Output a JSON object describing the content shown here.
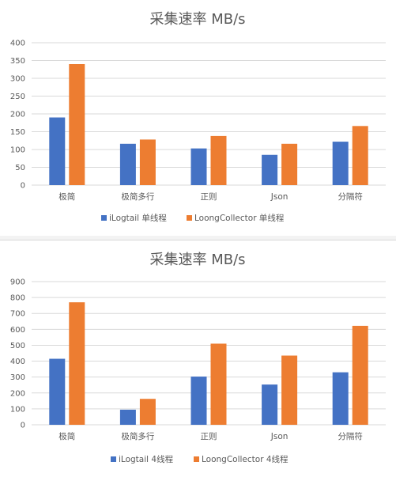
{
  "colors": {
    "ilogtail": "#4472C4",
    "loong": "#ED7D31",
    "grid": "#d9d9d9",
    "text": "#595959"
  },
  "chart_data": [
    {
      "type": "bar",
      "title": "采集速率 MB/s",
      "categories": [
        "极简",
        "极简多行",
        "正则",
        "Json",
        "分隔符"
      ],
      "ylim": [
        0,
        400
      ],
      "yticks": [
        0,
        50,
        100,
        150,
        200,
        250,
        300,
        350,
        400
      ],
      "grid": true,
      "legend": "bottom",
      "series": [
        {
          "name": "iLogtail 单线程",
          "values": [
            190,
            116,
            103,
            85,
            122
          ]
        },
        {
          "name": "LoongCollector 单线程",
          "values": [
            340,
            128,
            138,
            116,
            166
          ]
        }
      ]
    },
    {
      "type": "bar",
      "title": "采集速率 MB/s",
      "categories": [
        "极简",
        "极简多行",
        "正则",
        "Json",
        "分隔符"
      ],
      "ylim": [
        0,
        900
      ],
      "yticks": [
        0,
        100,
        200,
        300,
        400,
        500,
        600,
        700,
        800,
        900
      ],
      "grid": true,
      "legend": "bottom",
      "series": [
        {
          "name": "iLogtail 4线程",
          "values": [
            415,
            95,
            303,
            253,
            330
          ]
        },
        {
          "name": "LoongCollector 4线程",
          "values": [
            770,
            163,
            510,
            435,
            622
          ]
        }
      ]
    }
  ]
}
